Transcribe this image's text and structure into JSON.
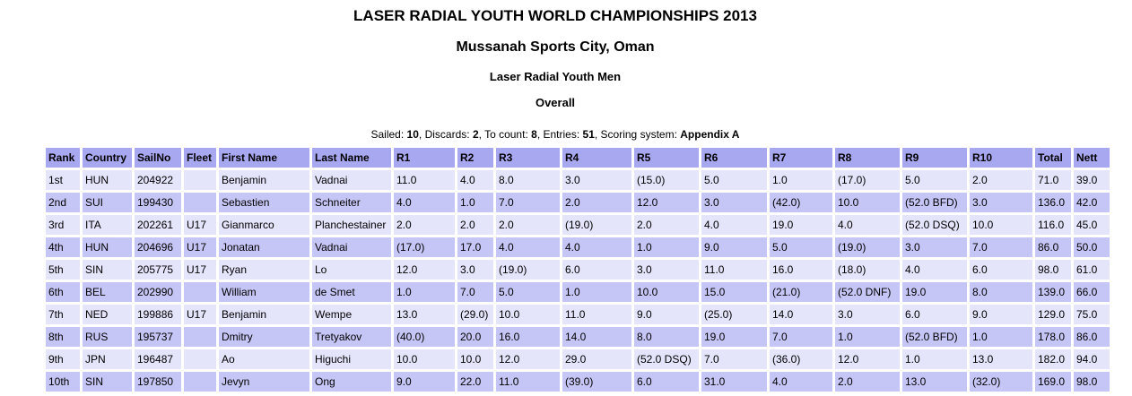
{
  "header": {
    "title": "LASER RADIAL YOUTH WORLD CHAMPIONSHIPS 2013",
    "venue": "Mussanah Sports City, Oman",
    "class": "Laser Radial Youth Men",
    "division": "Overall"
  },
  "summary": {
    "sailed_label": "Sailed:",
    "sailed": "10",
    "discards_label": "Discards:",
    "discards": "2",
    "tocount_label": "To count:",
    "tocount": "8",
    "entries_label": "Entries:",
    "entries": "51",
    "scoring_label": "Scoring system:",
    "scoring": "Appendix A"
  },
  "columns": [
    "Rank",
    "Country",
    "SailNo",
    "Fleet",
    "First Name",
    "Last Name",
    "R1",
    "R2",
    "R3",
    "R4",
    "R5",
    "R6",
    "R7",
    "R8",
    "R9",
    "R10",
    "Total",
    "Nett"
  ],
  "rows": [
    [
      "1st",
      "HUN",
      "204922",
      "",
      "Benjamin",
      "Vadnai",
      "11.0",
      "4.0",
      "8.0",
      "3.0",
      "(15.0)",
      "5.0",
      "1.0",
      "(17.0)",
      "5.0",
      "2.0",
      "71.0",
      "39.0"
    ],
    [
      "2nd",
      "SUI",
      "199430",
      "",
      "Sebastien",
      "Schneiter",
      "4.0",
      "1.0",
      "7.0",
      "2.0",
      "12.0",
      "3.0",
      "(42.0)",
      "10.0",
      "(52.0 BFD)",
      "3.0",
      "136.0",
      "42.0"
    ],
    [
      "3rd",
      "ITA",
      "202261",
      "U17",
      "Gianmarco",
      "Planchestainer",
      "2.0",
      "2.0",
      "2.0",
      "(19.0)",
      "2.0",
      "4.0",
      "19.0",
      "4.0",
      "(52.0 DSQ)",
      "10.0",
      "116.0",
      "45.0"
    ],
    [
      "4th",
      "HUN",
      "204696",
      "U17",
      "Jonatan",
      "Vadnai",
      "(17.0)",
      "17.0",
      "4.0",
      "4.0",
      "1.0",
      "9.0",
      "5.0",
      "(19.0)",
      "3.0",
      "7.0",
      "86.0",
      "50.0"
    ],
    [
      "5th",
      "SIN",
      "205775",
      "U17",
      "Ryan",
      "Lo",
      "12.0",
      "3.0",
      "(19.0)",
      "6.0",
      "3.0",
      "11.0",
      "16.0",
      "(18.0)",
      "4.0",
      "6.0",
      "98.0",
      "61.0"
    ],
    [
      "6th",
      "BEL",
      "202990",
      "",
      "William",
      "de Smet",
      "1.0",
      "7.0",
      "5.0",
      "1.0",
      "10.0",
      "15.0",
      "(21.0)",
      "(52.0 DNF)",
      "19.0",
      "8.0",
      "139.0",
      "66.0"
    ],
    [
      "7th",
      "NED",
      "199886",
      "U17",
      "Benjamin",
      "Wempe",
      "13.0",
      "(29.0)",
      "10.0",
      "11.0",
      "9.0",
      "(25.0)",
      "14.0",
      "3.0",
      "6.0",
      "9.0",
      "129.0",
      "75.0"
    ],
    [
      "8th",
      "RUS",
      "195737",
      "",
      "Dmitry",
      "Tretyakov",
      "(40.0)",
      "20.0",
      "16.0",
      "14.0",
      "8.0",
      "19.0",
      "7.0",
      "1.0",
      "(52.0 BFD)",
      "1.0",
      "178.0",
      "86.0"
    ],
    [
      "9th",
      "JPN",
      "196487",
      "",
      "Ao",
      "Higuchi",
      "10.0",
      "10.0",
      "12.0",
      "29.0",
      "(52.0 DSQ)",
      "7.0",
      "(36.0)",
      "12.0",
      "1.0",
      "13.0",
      "182.0",
      "94.0"
    ],
    [
      "10th",
      "SIN",
      "197850",
      "",
      "Jevyn",
      "Ong",
      "9.0",
      "22.0",
      "11.0",
      "(39.0)",
      "6.0",
      "31.0",
      "4.0",
      "2.0",
      "13.0",
      "(32.0)",
      "169.0",
      "98.0"
    ]
  ]
}
